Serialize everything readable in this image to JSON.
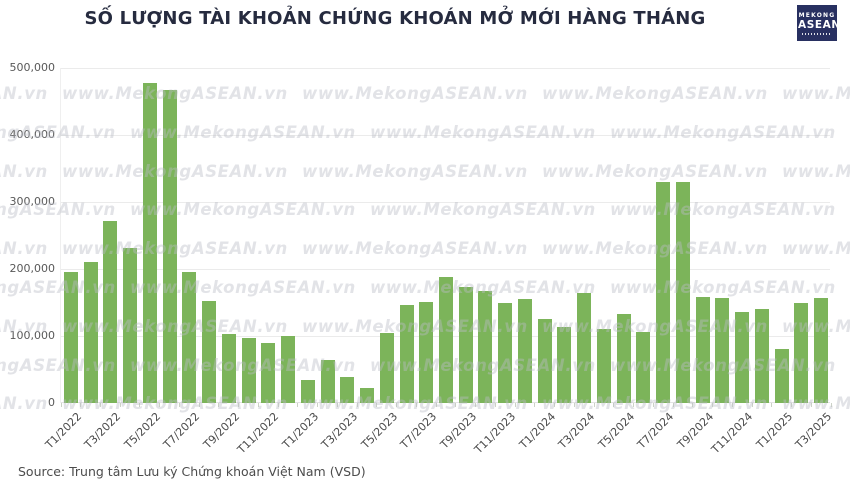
{
  "title": "SỐ LƯỢNG TÀI KHOẢN CHỨNG KHOÁN MỞ MỚI HÀNG THÁNG",
  "logo": {
    "line1": "MEKONG",
    "line2": "ASEAN"
  },
  "watermark_text": "www.MekongASEAN.vn",
  "source": "Source: Trung tâm Lưu ký Chứng khoán Việt Nam (VSD)",
  "colors": {
    "bar": "#7cb45a",
    "logo_background": "#283061",
    "title_text": "#262b3f",
    "axis_text": "#595959",
    "gridline": "#ebebeb"
  },
  "chart_data": {
    "type": "bar",
    "title": "SỐ LƯỢNG TÀI KHOẢN CHỨNG KHOÁN MỞ MỚI HÀNG THÁNG",
    "xlabel": "",
    "ylabel": "",
    "ylim": [
      0,
      500000
    ],
    "grid": true,
    "legend": false,
    "y_ticks": [
      0,
      100000,
      200000,
      300000,
      400000,
      500000
    ],
    "y_tick_labels": [
      "0",
      "100,000",
      "200,000",
      "300,000",
      "400,000",
      "500,000"
    ],
    "x_tick_label_indices_every": 2,
    "categories": [
      "T1/2022",
      "T2/2022",
      "T3/2022",
      "T4/2022",
      "T5/2022",
      "T6/2022",
      "T7/2022",
      "T8/2022",
      "T9/2022",
      "T10/2022",
      "T11/2022",
      "T12/2022",
      "T1/2023",
      "T2/2023",
      "T3/2023",
      "T4/2023",
      "T5/2023",
      "T6/2023",
      "T7/2023",
      "T8/2023",
      "T9/2023",
      "T10/2023",
      "T11/2023",
      "T12/2023",
      "T1/2024",
      "T2/2024",
      "T3/2024",
      "T4/2024",
      "T5/2024",
      "T6/2024",
      "T7/2024",
      "T8/2024",
      "T9/2024",
      "T10/2024",
      "T11/2024",
      "T12/2024",
      "T1/2025",
      "T2/2025",
      "T3/2025"
    ],
    "values": [
      196000,
      211000,
      271000,
      231000,
      477000,
      467000,
      196000,
      152000,
      103000,
      97000,
      89000,
      100000,
      35000,
      64000,
      39000,
      23000,
      105000,
      146000,
      151000,
      188000,
      173000,
      167000,
      149000,
      155000,
      125000,
      113000,
      164000,
      110000,
      133000,
      106000,
      330000,
      330000,
      158000,
      157000,
      136000,
      141000,
      81000,
      150000,
      157000
    ]
  }
}
